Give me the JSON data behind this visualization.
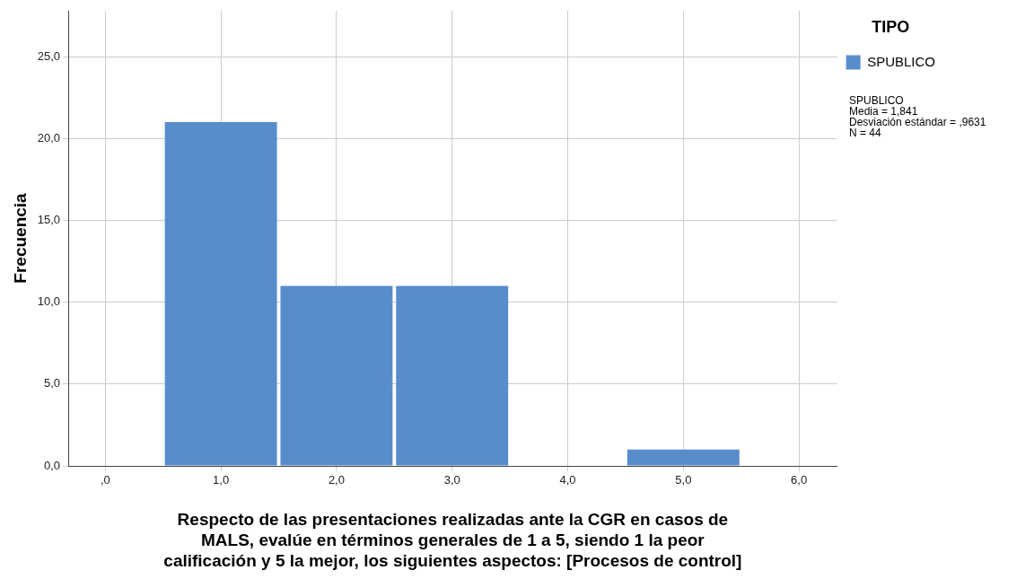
{
  "chart_data": {
    "type": "histogram",
    "xlabel": "Respecto de las presentaciones realizadas ante la CGR en casos de\nMALS, evalúe en términos generales de 1 a 5, siendo 1 la peor\ncalificación y 5 la mejor, los siguientes aspectos: [Procesos de control]",
    "ylabel": "Frecuencia",
    "legend_title": "TIPO",
    "bins": [
      0.5,
      1.5,
      2.5,
      3.5,
      4.5,
      5.5
    ],
    "series": [
      {
        "name": "SPUBLICO",
        "color": "#588dcc",
        "values": [
          21,
          11,
          11,
          0,
          1
        ]
      }
    ],
    "xlim": [
      -0.32,
      6.33
    ],
    "xticks": [
      {
        "value": 0,
        "label": ",0"
      },
      {
        "value": 1,
        "label": "1,0"
      },
      {
        "value": 2,
        "label": "2,0"
      },
      {
        "value": 3,
        "label": "3,0"
      },
      {
        "value": 4,
        "label": "4,0"
      },
      {
        "value": 5,
        "label": "5,0"
      },
      {
        "value": 6,
        "label": "6,0"
      }
    ],
    "ylim": [
      0,
      27.8
    ],
    "yticks": [
      {
        "value": 0,
        "label": "0,0"
      },
      {
        "value": 5,
        "label": "5,0"
      },
      {
        "value": 10,
        "label": "10,0"
      },
      {
        "value": 15,
        "label": "15,0"
      },
      {
        "value": 20,
        "label": "20,0"
      },
      {
        "value": 25,
        "label": "25,0"
      }
    ],
    "grid": true,
    "legend": "top right",
    "annotations": [
      "SPUBLICO\nMedia = 1,841\nDesviación estándar = ,9631\nN = 44"
    ]
  }
}
